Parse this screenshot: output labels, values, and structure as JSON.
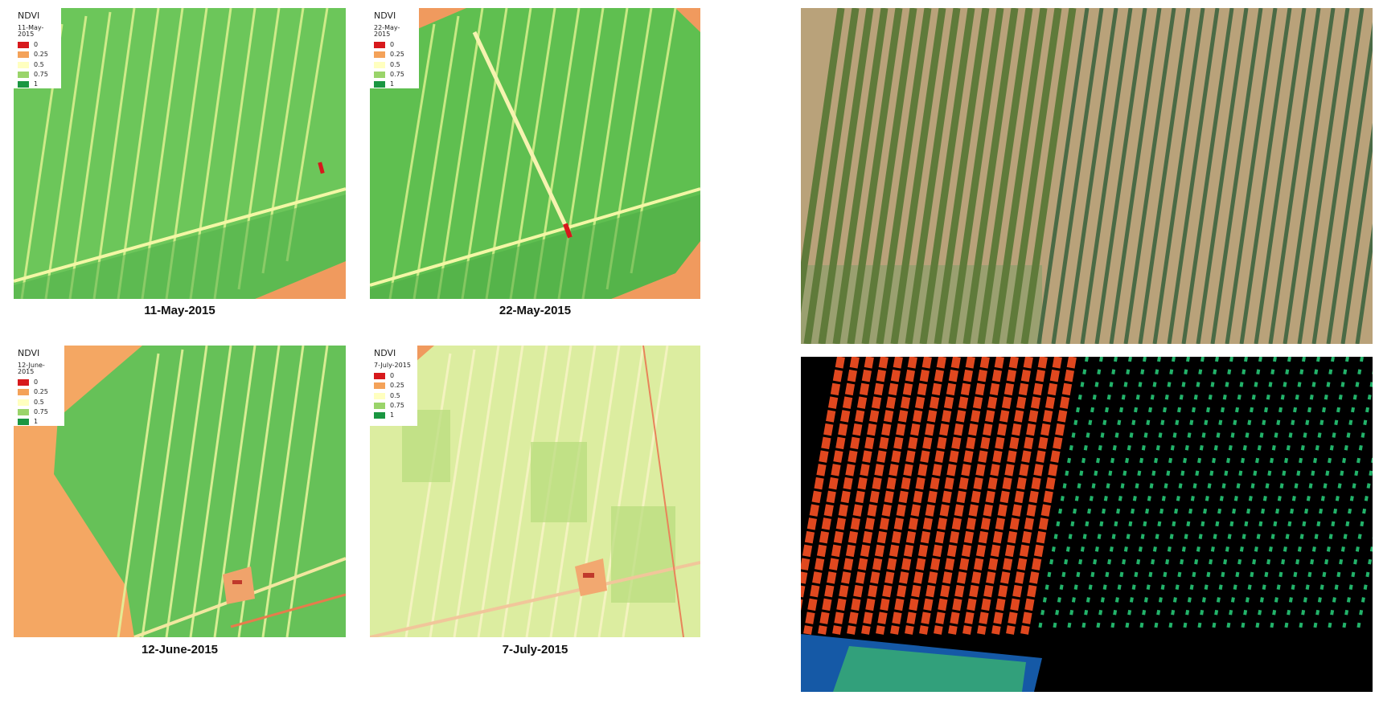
{
  "legend": {
    "title": "NDVI",
    "entries": [
      {
        "label": "0",
        "color": "#d7191c"
      },
      {
        "label": "0.25",
        "color": "#f4a259"
      },
      {
        "label": "0.5",
        "color": "#ffffbf"
      },
      {
        "label": "0.75",
        "color": "#9ad46a"
      },
      {
        "label": "1",
        "color": "#1a9641"
      }
    ]
  },
  "maps": [
    {
      "date": "11-May-2015",
      "caption": "11-May-2015"
    },
    {
      "date": "22-May-2015",
      "caption": "22-May-2015"
    },
    {
      "date": "12-June-2015",
      "caption": "12-June-2015"
    },
    {
      "date": "7-July-2015",
      "caption": "7-July-2015"
    }
  ],
  "photos": {
    "top": "rgb aerial photo of vineyard rows",
    "bottom": "false-color vegetation index map"
  },
  "colors": {
    "background_orange": "#f09a5e",
    "ndvi_high": "#4fb84a",
    "ndvi_mid": "#b6e07a",
    "ndvi_low": "#fff2b0",
    "soil": "#b9a27a"
  }
}
